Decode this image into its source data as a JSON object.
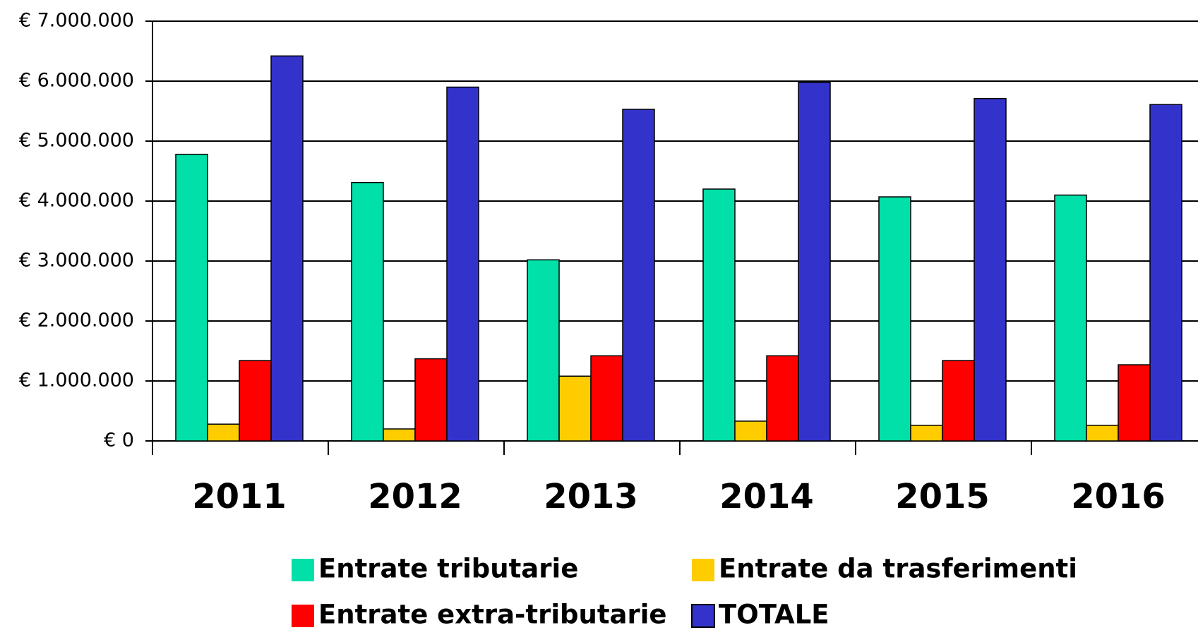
{
  "chart_data": {
    "type": "bar",
    "categories": [
      "2011",
      "2012",
      "2013",
      "2014",
      "2015",
      "2016"
    ],
    "series": [
      {
        "name": "Entrate tributarie",
        "color": "#00e0a8",
        "values": [
          4780000,
          4310000,
          3020000,
          4200000,
          4070000,
          4100000
        ]
      },
      {
        "name": "Entrate da trasferimenti",
        "color": "#ffcc00",
        "values": [
          280000,
          200000,
          1080000,
          330000,
          260000,
          260000
        ]
      },
      {
        "name": "Entrate extra-tributarie",
        "color": "#ff0000",
        "values": [
          1340000,
          1370000,
          1420000,
          1420000,
          1340000,
          1270000
        ]
      },
      {
        "name": "TOTALE",
        "color": "#3333cc",
        "values": [
          6420000,
          5900000,
          5530000,
          5980000,
          5710000,
          5610000
        ]
      }
    ],
    "ylim": [
      0,
      7000000
    ],
    "yticks": [
      {
        "value": 0,
        "label": "€ 0"
      },
      {
        "value": 1000000,
        "label": "€ 1.000.000"
      },
      {
        "value": 2000000,
        "label": "€ 2.000.000"
      },
      {
        "value": 3000000,
        "label": "€ 3.000.000"
      },
      {
        "value": 4000000,
        "label": "€ 4.000.000"
      },
      {
        "value": 5000000,
        "label": "€ 5.000.000"
      },
      {
        "value": 6000000,
        "label": "€ 6.000.000"
      },
      {
        "value": 7000000,
        "label": "€ 7.000.000"
      }
    ],
    "grid": true
  }
}
